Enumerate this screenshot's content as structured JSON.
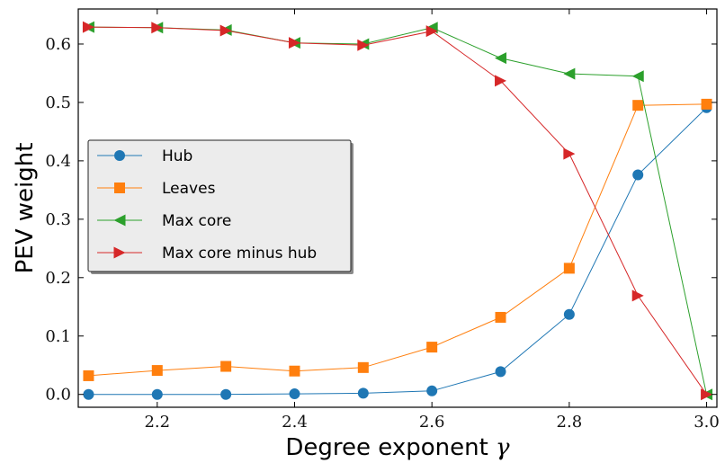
{
  "chart_data": {
    "type": "line",
    "xlabel": "Degree exponent",
    "xlabel_symbol": "γ",
    "ylabel": "PEV weight",
    "xlim": [
      2.085,
      3.015
    ],
    "ylim": [
      -0.022,
      0.66
    ],
    "x_ticks": [
      2.2,
      2.4,
      2.6,
      2.8,
      3.0
    ],
    "x_tick_labels": [
      "2.2",
      "2.4",
      "2.6",
      "2.8",
      "3.0"
    ],
    "y_ticks": [
      0.0,
      0.1,
      0.2,
      0.3,
      0.4,
      0.5,
      0.6
    ],
    "y_tick_labels": [
      "0.0",
      "0.1",
      "0.2",
      "0.3",
      "0.4",
      "0.5",
      "0.6"
    ],
    "grid": false,
    "legend_position": "center-left",
    "x": [
      2.1,
      2.2,
      2.3,
      2.4,
      2.5,
      2.6,
      2.7,
      2.8,
      2.9,
      3.0
    ],
    "series": [
      {
        "name": "Hub",
        "marker": "circle",
        "color": "#1f77b4",
        "values": [
          0.0,
          0.0,
          0.0,
          0.001,
          0.002,
          0.006,
          0.039,
          0.137,
          0.376,
          0.491
        ]
      },
      {
        "name": "Leaves",
        "marker": "square",
        "color": "#ff7f0e",
        "values": [
          0.032,
          0.041,
          0.048,
          0.04,
          0.046,
          0.081,
          0.132,
          0.216,
          0.495,
          0.497
        ]
      },
      {
        "name": "Max core",
        "marker": "triangle-left",
        "color": "#2ca02c",
        "values": [
          0.629,
          0.628,
          0.624,
          0.602,
          0.6,
          0.628,
          0.576,
          0.549,
          0.545,
          0.0
        ]
      },
      {
        "name": "Max core minus hub",
        "marker": "triangle-right",
        "color": "#d62728",
        "values": [
          0.629,
          0.628,
          0.623,
          0.602,
          0.598,
          0.622,
          0.537,
          0.412,
          0.169,
          0.0
        ]
      }
    ]
  }
}
